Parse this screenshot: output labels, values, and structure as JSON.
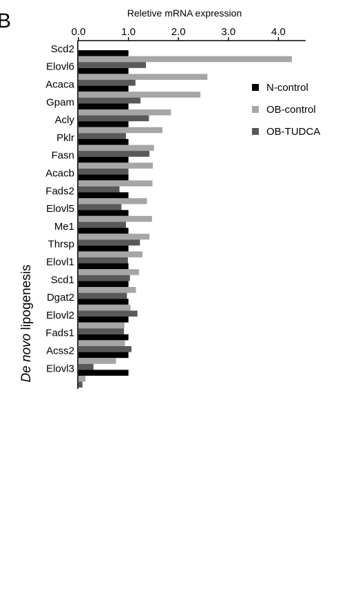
{
  "panel_letter": "B",
  "chart_data": {
    "type": "bar",
    "orientation": "horizontal",
    "title": "",
    "xlabel": "Reletive mRNA expression",
    "ylabel_italic": "De novo",
    "ylabel_rest": " lipogenesis",
    "xlim": [
      0,
      4.4
    ],
    "xticks": [
      0.0,
      1.0,
      2.0,
      3.0,
      4.0
    ],
    "xtick_labels": [
      "0.0",
      "1.0",
      "2.0",
      "3.0",
      "4.0"
    ],
    "grid": false,
    "legend_position": "top-right",
    "categories": [
      "Scd2",
      "Elovl6",
      "Acaca",
      "Gpam",
      "Acly",
      "Pklr",
      "Fasn",
      "Acacb",
      "Fads2",
      "Elovl5",
      "Me1",
      "Thrsp",
      "Elovl1",
      "Scd1",
      "Dgat2",
      "Elovl2",
      "Fads1",
      "Acss2",
      "Elovl3"
    ],
    "series": [
      {
        "name": "N-control",
        "color": "#000000",
        "values": [
          1.0,
          1.0,
          1.0,
          1.0,
          1.0,
          1.0,
          1.0,
          1.0,
          1.0,
          1.0,
          1.0,
          1.0,
          1.0,
          1.0,
          1.0,
          1.0,
          1.0,
          1.0,
          1.0
        ]
      },
      {
        "name": "OB-control",
        "color": "#a6a6a6",
        "values": [
          4.27,
          2.58,
          2.44,
          1.85,
          1.68,
          1.51,
          1.49,
          1.48,
          1.37,
          1.47,
          1.42,
          1.28,
          1.21,
          1.15,
          1.04,
          0.92,
          0.93,
          0.75,
          0.14
        ]
      },
      {
        "name": "OB-TUDCA",
        "color": "#595959",
        "values": [
          1.35,
          1.14,
          1.24,
          1.41,
          0.95,
          1.42,
          1.0,
          0.82,
          0.86,
          0.95,
          1.23,
          0.99,
          1.03,
          0.97,
          1.18,
          0.91,
          1.06,
          0.3,
          0.08
        ]
      }
    ]
  }
}
